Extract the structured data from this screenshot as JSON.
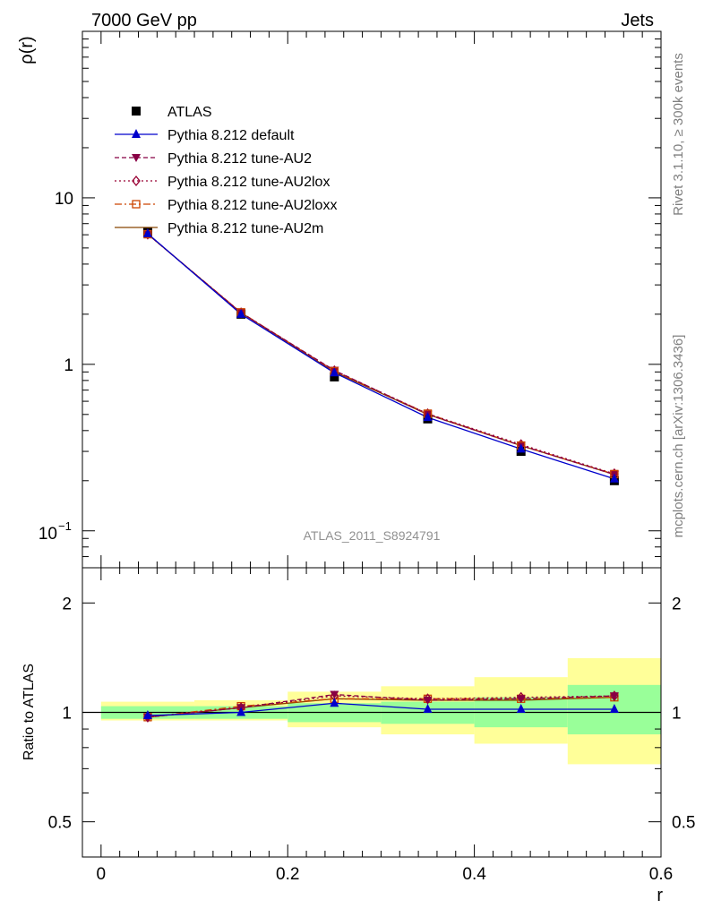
{
  "header": {
    "left": "7000 GeV pp",
    "right": "Jets"
  },
  "side_labels": {
    "rivet": "Rivet 3.1.10, ≥ 300k events",
    "mcplots": "mcplots.cern.ch [arXiv:1306.3436]"
  },
  "watermark": "ATLAS_2011_S8924791",
  "chart_data": [
    {
      "type": "line",
      "panel": "main",
      "ylabel": "ρ(r)",
      "xlabel": "r",
      "yscale": "log",
      "xlim": [
        -0.02,
        0.6
      ],
      "ylim": [
        0.06,
        100
      ],
      "y_tick_labels": [
        "10",
        "1"
      ],
      "y_tick_values": [
        10,
        1
      ],
      "y_tick_special": {
        "base": "10",
        "exp": "−1",
        "value": 0.1
      },
      "x": [
        0.05,
        0.15,
        0.25,
        0.35,
        0.45,
        0.55
      ],
      "series": [
        {
          "name": "ATLAS",
          "values": [
            6.25,
            2.0,
            0.84,
            0.47,
            0.3,
            0.2
          ],
          "color": "#000000",
          "marker": "square",
          "dash": "none"
        },
        {
          "name": "Pythia 8.212 default",
          "values": [
            6.1,
            2.0,
            0.89,
            0.48,
            0.31,
            0.205
          ],
          "color": "#0000cc",
          "marker": "triangle-up",
          "dash": "none"
        },
        {
          "name": "Pythia 8.212 tune-AU2",
          "values": [
            6.05,
            2.04,
            0.92,
            0.5,
            0.325,
            0.218
          ],
          "color": "#880044",
          "marker": "triangle-down",
          "dash": "5,3"
        },
        {
          "name": "Pythia 8.212 tune-AU2lox",
          "values": [
            6.05,
            2.04,
            0.915,
            0.505,
            0.33,
            0.22
          ],
          "color": "#990033",
          "marker": "diamond-open",
          "dash": "2,3"
        },
        {
          "name": "Pythia 8.212 tune-AU2loxx",
          "values": [
            6.05,
            2.05,
            0.91,
            0.505,
            0.325,
            0.219
          ],
          "color": "#cc4400",
          "marker": "square-open",
          "dash": "8,3,2,3"
        },
        {
          "name": "Pythia 8.212 tune-AU2m",
          "values": [
            6.05,
            2.04,
            0.9,
            0.5,
            0.325,
            0.218
          ],
          "color": "#884400",
          "marker": "none",
          "dash": "none"
        }
      ]
    },
    {
      "type": "line",
      "panel": "ratio",
      "ylabel": "Ratio to ATLAS",
      "xlabel": "r",
      "xlim": [
        -0.02,
        0.6
      ],
      "ylim": [
        0.4,
        2.5
      ],
      "x_tick_labels": [
        "0",
        "0.2",
        "0.4",
        "0.6"
      ],
      "x_tick_values": [
        0,
        0.2,
        0.4,
        0.6
      ],
      "y_tick_labels": [
        "2",
        "1",
        "0.5"
      ],
      "y_tick_values": [
        2,
        1,
        0.5
      ],
      "bin_edges": [
        0.0,
        0.1,
        0.2,
        0.3,
        0.4,
        0.5,
        0.6
      ],
      "band_green": [
        [
          0.96,
          1.04
        ],
        [
          0.96,
          1.04
        ],
        [
          0.94,
          1.06
        ],
        [
          0.93,
          1.07
        ],
        [
          0.91,
          1.1
        ],
        [
          0.87,
          1.19
        ]
      ],
      "band_yellow": [
        [
          0.95,
          1.07
        ],
        [
          0.95,
          1.08
        ],
        [
          0.91,
          1.14
        ],
        [
          0.87,
          1.18
        ],
        [
          0.82,
          1.25
        ],
        [
          0.72,
          1.41
        ]
      ],
      "x": [
        0.05,
        0.15,
        0.25,
        0.35,
        0.45,
        0.55
      ],
      "series": [
        {
          "name": "Pythia 8.212 default",
          "values": [
            0.98,
            1.0,
            1.06,
            1.02,
            1.02,
            1.02
          ],
          "color": "#0000cc",
          "marker": "triangle-up",
          "dash": "none"
        },
        {
          "name": "Pythia 8.212 tune-AU2",
          "values": [
            0.97,
            1.03,
            1.12,
            1.08,
            1.09,
            1.11
          ],
          "color": "#880044",
          "marker": "triangle-down",
          "dash": "5,3"
        },
        {
          "name": "Pythia 8.212 tune-AU2lox",
          "values": [
            0.97,
            1.03,
            1.11,
            1.09,
            1.1,
            1.11
          ],
          "color": "#990033",
          "marker": "diamond-open",
          "dash": "2,3"
        },
        {
          "name": "Pythia 8.212 tune-AU2loxx",
          "values": [
            0.97,
            1.04,
            1.09,
            1.09,
            1.09,
            1.1
          ],
          "color": "#cc4400",
          "marker": "square-open",
          "dash": "8,3,2,3"
        },
        {
          "name": "Pythia 8.212 tune-AU2m",
          "values": [
            0.97,
            1.03,
            1.09,
            1.08,
            1.08,
            1.1
          ],
          "color": "#884400",
          "marker": "none",
          "dash": "none"
        }
      ]
    }
  ]
}
